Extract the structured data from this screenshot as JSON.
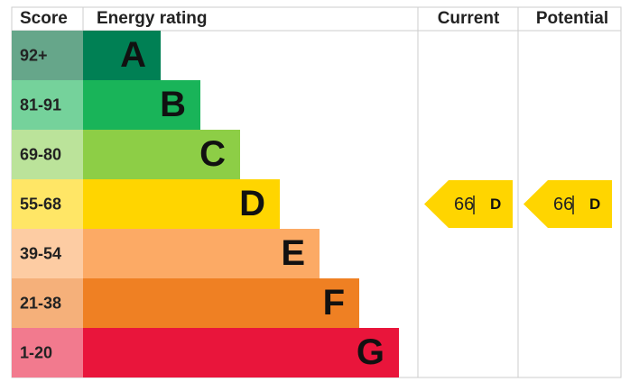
{
  "header": {
    "score": "Score",
    "energy_rating": "Energy rating",
    "current": "Current",
    "potential": "Potential"
  },
  "bands": [
    {
      "score": "92+",
      "letter": "A",
      "color": "#008054",
      "score_color": "#66a68a"
    },
    {
      "score": "81-91",
      "letter": "B",
      "color": "#19b459",
      "score_color": "#75d29b"
    },
    {
      "score": "69-80",
      "letter": "C",
      "color": "#8dce46",
      "score_color": "#bbe39a"
    },
    {
      "score": "55-68",
      "letter": "D",
      "color": "#ffd500",
      "score_color": "#ffe666"
    },
    {
      "score": "39-54",
      "letter": "E",
      "color": "#fcaa65",
      "score_color": "#fdcca3"
    },
    {
      "score": "21-38",
      "letter": "F",
      "color": "#ef8023",
      "score_color": "#f5b07a"
    },
    {
      "score": "1-20",
      "letter": "G",
      "color": "#e9153b",
      "score_color": "#f27a8e"
    }
  ],
  "current": {
    "value": 66,
    "letter": "D",
    "band": 3
  },
  "potential": {
    "value": 66,
    "letter": "D",
    "band": 3
  }
}
